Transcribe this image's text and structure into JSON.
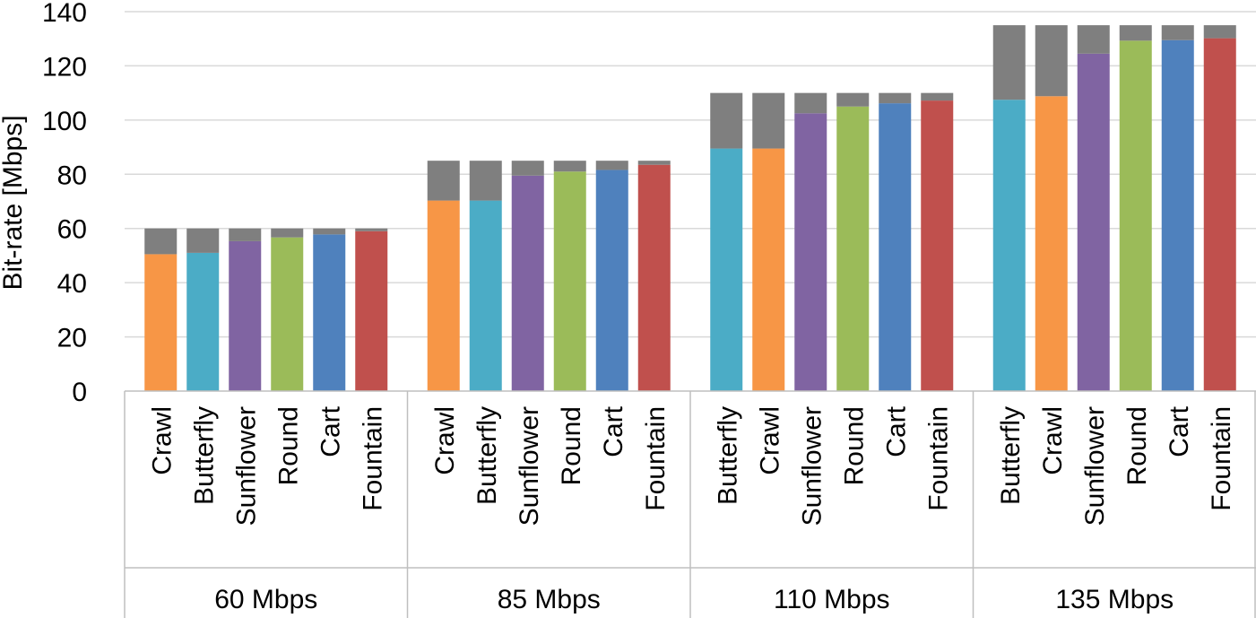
{
  "chart_data": {
    "type": "bar",
    "stacked": true,
    "ylabel": "Bit-rate [Mbps]",
    "xlabel": "",
    "title": "",
    "ylim": [
      0,
      140
    ],
    "yticks": [
      0,
      20,
      40,
      60,
      80,
      100,
      120,
      140
    ],
    "grid": "horizontal",
    "groups": [
      {
        "label": "60 Mbps",
        "target": 60,
        "bars": [
          {
            "name": "Crawl",
            "value": 50.5,
            "color": "#f79646"
          },
          {
            "name": "Butterfly",
            "value": 51,
            "color": "#4bacc6"
          },
          {
            "name": "Sunflower",
            "value": 55.3,
            "color": "#8064a2"
          },
          {
            "name": "Round",
            "value": 56.7,
            "color": "#9bbb59"
          },
          {
            "name": "Cart",
            "value": 57.8,
            "color": "#4f81bd"
          },
          {
            "name": "Fountain",
            "value": 59,
            "color": "#c0504d"
          }
        ]
      },
      {
        "label": "85 Mbps",
        "target": 85,
        "bars": [
          {
            "name": "Crawl",
            "value": 70.3,
            "color": "#f79646"
          },
          {
            "name": "Butterfly",
            "value": 70.3,
            "color": "#4bacc6"
          },
          {
            "name": "Sunflower",
            "value": 79.5,
            "color": "#8064a2"
          },
          {
            "name": "Round",
            "value": 81,
            "color": "#9bbb59"
          },
          {
            "name": "Cart",
            "value": 81.6,
            "color": "#4f81bd"
          },
          {
            "name": "Fountain",
            "value": 83.5,
            "color": "#c0504d"
          }
        ]
      },
      {
        "label": "110 Mbps",
        "target": 110,
        "bars": [
          {
            "name": "Butterfly",
            "value": 89.5,
            "color": "#4bacc6"
          },
          {
            "name": "Crawl",
            "value": 89.5,
            "color": "#f79646"
          },
          {
            "name": "Sunflower",
            "value": 102.5,
            "color": "#8064a2"
          },
          {
            "name": "Round",
            "value": 105,
            "color": "#9bbb59"
          },
          {
            "name": "Cart",
            "value": 106.2,
            "color": "#4f81bd"
          },
          {
            "name": "Fountain",
            "value": 107.2,
            "color": "#c0504d"
          }
        ]
      },
      {
        "label": "135 Mbps",
        "target": 135,
        "bars": [
          {
            "name": "Butterfly",
            "value": 107.5,
            "color": "#4bacc6"
          },
          {
            "name": "Crawl",
            "value": 108.8,
            "color": "#f79646"
          },
          {
            "name": "Sunflower",
            "value": 124.5,
            "color": "#8064a2"
          },
          {
            "name": "Round",
            "value": 129.3,
            "color": "#9bbb59"
          },
          {
            "name": "Cart",
            "value": 129.5,
            "color": "#4f81bd"
          },
          {
            "name": "Fountain",
            "value": 130.2,
            "color": "#c0504d"
          }
        ]
      }
    ],
    "remainder_color": "#7f7f7f",
    "grid_color": "#d9d9d9",
    "axis_color": "#bfbfbf"
  }
}
